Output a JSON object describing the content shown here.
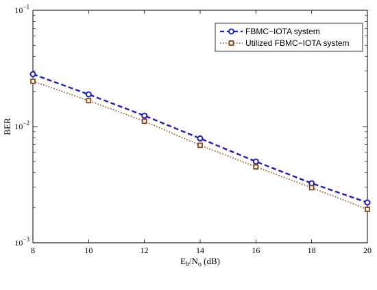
{
  "chart_data": {
    "type": "line",
    "title": "",
    "xlabel": {
      "main": "E",
      "sub1": "b",
      "mid": "/N",
      "sub2": "o",
      "tail": " (dB)"
    },
    "ylabel": "BER",
    "x": [
      8,
      10,
      12,
      14,
      16,
      18,
      20
    ],
    "xlim": [
      8,
      20
    ],
    "ylim": [
      0.001,
      0.1
    ],
    "yscale": "log",
    "grid": false,
    "legend_position": "top-right",
    "x_tick_labels": [
      "8",
      "10",
      "12",
      "14",
      "16",
      "18",
      "20"
    ],
    "y_tick_labels": [
      {
        "value": 0.1,
        "base": "10",
        "exp": "−1"
      },
      {
        "value": 0.01,
        "base": "10",
        "exp": "−2"
      },
      {
        "value": 0.001,
        "base": "10",
        "exp": "−3"
      }
    ],
    "series": [
      {
        "name": "FBMC−IOTA system",
        "values": [
          0.0282,
          0.0189,
          0.0124,
          0.0079,
          0.005,
          0.00325,
          0.00222
        ],
        "color": "#1a1acc",
        "line_style": "dashed",
        "marker": "circle"
      },
      {
        "name": "Utilized FBMC−IOTA system",
        "values": [
          0.0245,
          0.0167,
          0.0111,
          0.0069,
          0.0045,
          0.00298,
          0.00194
        ],
        "color": "#8b4513",
        "line_style": "dotted",
        "marker": "square"
      }
    ]
  }
}
